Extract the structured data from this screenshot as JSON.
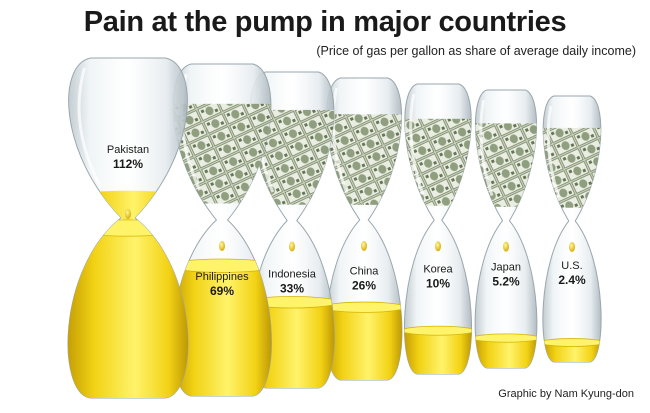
{
  "title": "Pain at the pump in major countries",
  "subtitle": "(Price of gas per gallon as share of average daily income)",
  "credit": "Graphic by Nam Kyung-don",
  "colors": {
    "fuel_light": "#fff36a",
    "fuel_mid": "#f2d214",
    "fuel_dark": "#b88f00",
    "glass": "#dfe6ea",
    "money": "#8a9a78"
  },
  "chart_data": {
    "type": "bar",
    "categories": [
      "Pakistan",
      "Philippines",
      "Indonesia",
      "China",
      "Korea",
      "Japan",
      "U.S."
    ],
    "values": [
      112,
      69,
      33,
      26,
      10,
      5.2,
      2.4
    ],
    "value_labels": [
      "112%",
      "69%",
      "33%",
      "26%",
      "10%",
      "5.2%",
      "2.4%"
    ],
    "unit": "%",
    "title": "Pain at the pump in major countries",
    "subtitle": "(Price of gas per gallon as share of average daily income)",
    "xlabel": "",
    "ylabel": ""
  }
}
